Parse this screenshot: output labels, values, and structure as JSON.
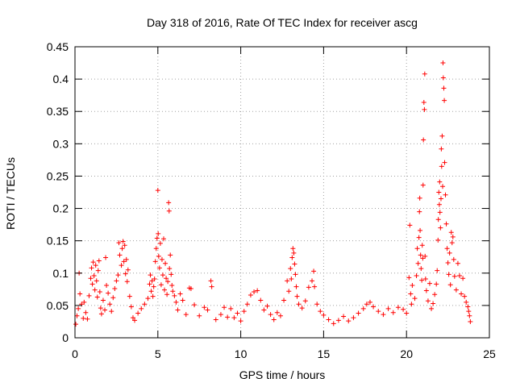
{
  "chart_data": {
    "type": "scatter",
    "title": "Day 318 of 2016, Rate Of TEC Index for receiver ascg",
    "xlabel": "GPS time / hours",
    "ylabel": "ROTI / TECUs",
    "xlim": [
      0,
      25
    ],
    "ylim": [
      0,
      0.45
    ],
    "xticks": [
      0,
      5,
      10,
      15,
      20,
      25
    ],
    "xtick_labels": [
      "0",
      "5",
      "10",
      "15",
      "20",
      "25"
    ],
    "yticks": [
      0,
      0.05,
      0.1,
      0.15,
      0.2,
      0.25,
      0.3,
      0.35,
      0.4,
      0.45
    ],
    "ytick_labels": [
      "0",
      "0.05",
      "0.1",
      "0.15",
      "0.2",
      "0.25",
      "0.3",
      "0.35",
      "0.4",
      "0.45"
    ],
    "grid": true,
    "marker": "+",
    "colors": {
      "series": "#ff0000",
      "axes": "#000000",
      "grid": "#a0a0a0"
    },
    "series": [
      {
        "name": "ROTI",
        "points": [
          [
            0.05,
            0.021
          ],
          [
            0.12,
            0.034
          ],
          [
            0.2,
            0.045
          ],
          [
            0.25,
            0.1
          ],
          [
            0.3,
            0.068
          ],
          [
            0.4,
            0.052
          ],
          [
            0.5,
            0.03
          ],
          [
            0.55,
            0.055
          ],
          [
            0.65,
            0.039
          ],
          [
            0.75,
            0.029
          ],
          [
            0.85,
            0.065
          ],
          [
            0.95,
            0.092
          ],
          [
            1.0,
            0.108
          ],
          [
            1.05,
            0.083
          ],
          [
            1.1,
            0.117
          ],
          [
            1.15,
            0.096
          ],
          [
            1.2,
            0.074
          ],
          [
            1.25,
            0.112
          ],
          [
            1.3,
            0.088
          ],
          [
            1.35,
            0.063
          ],
          [
            1.4,
            0.104
          ],
          [
            1.45,
            0.119
          ],
          [
            1.5,
            0.071
          ],
          [
            1.55,
            0.046
          ],
          [
            1.6,
            0.037
          ],
          [
            1.7,
            0.058
          ],
          [
            1.8,
            0.043
          ],
          [
            1.85,
            0.124
          ],
          [
            1.9,
            0.081
          ],
          [
            2.0,
            0.069
          ],
          [
            2.1,
            0.052
          ],
          [
            2.2,
            0.041
          ],
          [
            2.3,
            0.062
          ],
          [
            2.4,
            0.076
          ],
          [
            2.5,
            0.088
          ],
          [
            2.6,
            0.097
          ],
          [
            2.65,
            0.147
          ],
          [
            2.7,
            0.128
          ],
          [
            2.8,
            0.112
          ],
          [
            2.85,
            0.138
          ],
          [
            2.9,
            0.149
          ],
          [
            2.95,
            0.118
          ],
          [
            3.0,
            0.143
          ],
          [
            3.05,
            0.099
          ],
          [
            3.1,
            0.121
          ],
          [
            3.15,
            0.087
          ],
          [
            3.2,
            0.105
          ],
          [
            3.3,
            0.064
          ],
          [
            3.4,
            0.048
          ],
          [
            3.5,
            0.031
          ],
          [
            3.6,
            0.027
          ],
          [
            3.8,
            0.038
          ],
          [
            4.0,
            0.045
          ],
          [
            4.2,
            0.052
          ],
          [
            4.4,
            0.061
          ],
          [
            4.5,
            0.083
          ],
          [
            4.55,
            0.097
          ],
          [
            4.6,
            0.072
          ],
          [
            4.65,
            0.088
          ],
          [
            4.7,
            0.064
          ],
          [
            4.75,
            0.079
          ],
          [
            4.8,
            0.091
          ],
          [
            4.85,
            0.118
          ],
          [
            4.9,
            0.138
          ],
          [
            4.95,
            0.154
          ],
          [
            5.0,
            0.228
          ],
          [
            5.02,
            0.161
          ],
          [
            5.05,
            0.126
          ],
          [
            5.1,
            0.108
          ],
          [
            5.15,
            0.146
          ],
          [
            5.2,
            0.082
          ],
          [
            5.25,
            0.121
          ],
          [
            5.3,
            0.097
          ],
          [
            5.35,
            0.153
          ],
          [
            5.4,
            0.074
          ],
          [
            5.45,
            0.115
          ],
          [
            5.5,
            0.092
          ],
          [
            5.55,
            0.067
          ],
          [
            5.6,
            0.087
          ],
          [
            5.65,
            0.209
          ],
          [
            5.68,
            0.196
          ],
          [
            5.7,
            0.107
          ],
          [
            5.75,
            0.128
          ],
          [
            5.8,
            0.098
          ],
          [
            5.85,
            0.081
          ],
          [
            5.9,
            0.072
          ],
          [
            6.0,
            0.065
          ],
          [
            6.1,
            0.055
          ],
          [
            6.2,
            0.043
          ],
          [
            6.35,
            0.068
          ],
          [
            6.5,
            0.058
          ],
          [
            6.7,
            0.036
          ],
          [
            6.9,
            0.077
          ],
          [
            7.0,
            0.076
          ],
          [
            7.2,
            0.051
          ],
          [
            7.5,
            0.034
          ],
          [
            7.8,
            0.047
          ],
          [
            8.0,
            0.043
          ],
          [
            8.2,
            0.088
          ],
          [
            8.25,
            0.079
          ],
          [
            8.5,
            0.028
          ],
          [
            8.8,
            0.036
          ],
          [
            9.0,
            0.047
          ],
          [
            9.2,
            0.032
          ],
          [
            9.4,
            0.045
          ],
          [
            9.6,
            0.031
          ],
          [
            9.8,
            0.038
          ],
          [
            10.0,
            0.026
          ],
          [
            10.2,
            0.041
          ],
          [
            10.4,
            0.052
          ],
          [
            10.6,
            0.066
          ],
          [
            10.8,
            0.071
          ],
          [
            11.0,
            0.073
          ],
          [
            11.2,
            0.058
          ],
          [
            11.4,
            0.043
          ],
          [
            11.6,
            0.049
          ],
          [
            11.8,
            0.036
          ],
          [
            12.0,
            0.028
          ],
          [
            12.2,
            0.039
          ],
          [
            12.4,
            0.034
          ],
          [
            12.6,
            0.058
          ],
          [
            12.8,
            0.088
          ],
          [
            12.9,
            0.072
          ],
          [
            13.0,
            0.107
          ],
          [
            13.05,
            0.091
          ],
          [
            13.1,
            0.124
          ],
          [
            13.15,
            0.138
          ],
          [
            13.2,
            0.131
          ],
          [
            13.25,
            0.114
          ],
          [
            13.3,
            0.098
          ],
          [
            13.35,
            0.079
          ],
          [
            13.4,
            0.064
          ],
          [
            13.5,
            0.052
          ],
          [
            13.7,
            0.046
          ],
          [
            13.9,
            0.057
          ],
          [
            14.1,
            0.078
          ],
          [
            14.3,
            0.088
          ],
          [
            14.4,
            0.103
          ],
          [
            14.45,
            0.079
          ],
          [
            14.6,
            0.052
          ],
          [
            14.8,
            0.041
          ],
          [
            15.0,
            0.035
          ],
          [
            15.3,
            0.028
          ],
          [
            15.6,
            0.022
          ],
          [
            15.9,
            0.027
          ],
          [
            16.2,
            0.033
          ],
          [
            16.5,
            0.026
          ],
          [
            16.8,
            0.031
          ],
          [
            17.1,
            0.038
          ],
          [
            17.4,
            0.045
          ],
          [
            17.6,
            0.052
          ],
          [
            17.8,
            0.055
          ],
          [
            18.0,
            0.048
          ],
          [
            18.3,
            0.041
          ],
          [
            18.6,
            0.036
          ],
          [
            18.9,
            0.045
          ],
          [
            19.2,
            0.039
          ],
          [
            19.5,
            0.047
          ],
          [
            19.8,
            0.044
          ],
          [
            20.0,
            0.038
          ],
          [
            20.15,
            0.093
          ],
          [
            20.2,
            0.174
          ],
          [
            20.25,
            0.068
          ],
          [
            20.3,
            0.052
          ],
          [
            20.35,
            0.081
          ],
          [
            20.5,
            0.061
          ],
          [
            20.6,
            0.096
          ],
          [
            20.65,
            0.138
          ],
          [
            20.7,
            0.115
          ],
          [
            20.75,
            0.155
          ],
          [
            20.78,
            0.195
          ],
          [
            20.8,
            0.216
          ],
          [
            20.82,
            0.166
          ],
          [
            20.85,
            0.128
          ],
          [
            20.88,
            0.107
          ],
          [
            20.92,
            0.089
          ],
          [
            20.95,
            0.143
          ],
          [
            20.98,
            0.123
          ],
          [
            21.0,
            0.236
          ],
          [
            21.02,
            0.306
          ],
          [
            21.05,
            0.364
          ],
          [
            21.08,
            0.353
          ],
          [
            21.1,
            0.408
          ],
          [
            21.12,
            0.126
          ],
          [
            21.15,
            0.091
          ],
          [
            21.2,
            0.073
          ],
          [
            21.3,
            0.057
          ],
          [
            21.4,
            0.084
          ],
          [
            21.5,
            0.045
          ],
          [
            21.6,
            0.053
          ],
          [
            21.7,
            0.067
          ],
          [
            21.8,
            0.083
          ],
          [
            21.85,
            0.104
          ],
          [
            21.9,
            0.151
          ],
          [
            21.92,
            0.183
          ],
          [
            21.95,
            0.225
          ],
          [
            21.98,
            0.206
          ],
          [
            22.0,
            0.241
          ],
          [
            22.02,
            0.194
          ],
          [
            22.05,
            0.17
          ],
          [
            22.08,
            0.215
          ],
          [
            22.1,
            0.292
          ],
          [
            22.12,
            0.265
          ],
          [
            22.15,
            0.312
          ],
          [
            22.18,
            0.234
          ],
          [
            22.2,
            0.425
          ],
          [
            22.22,
            0.402
          ],
          [
            22.25,
            0.386
          ],
          [
            22.28,
            0.367
          ],
          [
            22.3,
            0.271
          ],
          [
            22.35,
            0.221
          ],
          [
            22.4,
            0.176
          ],
          [
            22.45,
            0.138
          ],
          [
            22.5,
            0.116
          ],
          [
            22.55,
            0.098
          ],
          [
            22.6,
            0.131
          ],
          [
            22.65,
            0.082
          ],
          [
            22.7,
            0.163
          ],
          [
            22.75,
            0.147
          ],
          [
            22.8,
            0.156
          ],
          [
            22.85,
            0.121
          ],
          [
            22.9,
            0.095
          ],
          [
            23.0,
            0.074
          ],
          [
            23.1,
            0.115
          ],
          [
            23.2,
            0.096
          ],
          [
            23.3,
            0.068
          ],
          [
            23.4,
            0.092
          ],
          [
            23.5,
            0.064
          ],
          [
            23.6,
            0.055
          ],
          [
            23.7,
            0.048
          ],
          [
            23.75,
            0.041
          ],
          [
            23.8,
            0.034
          ],
          [
            23.85,
            0.025
          ]
        ]
      }
    ]
  }
}
